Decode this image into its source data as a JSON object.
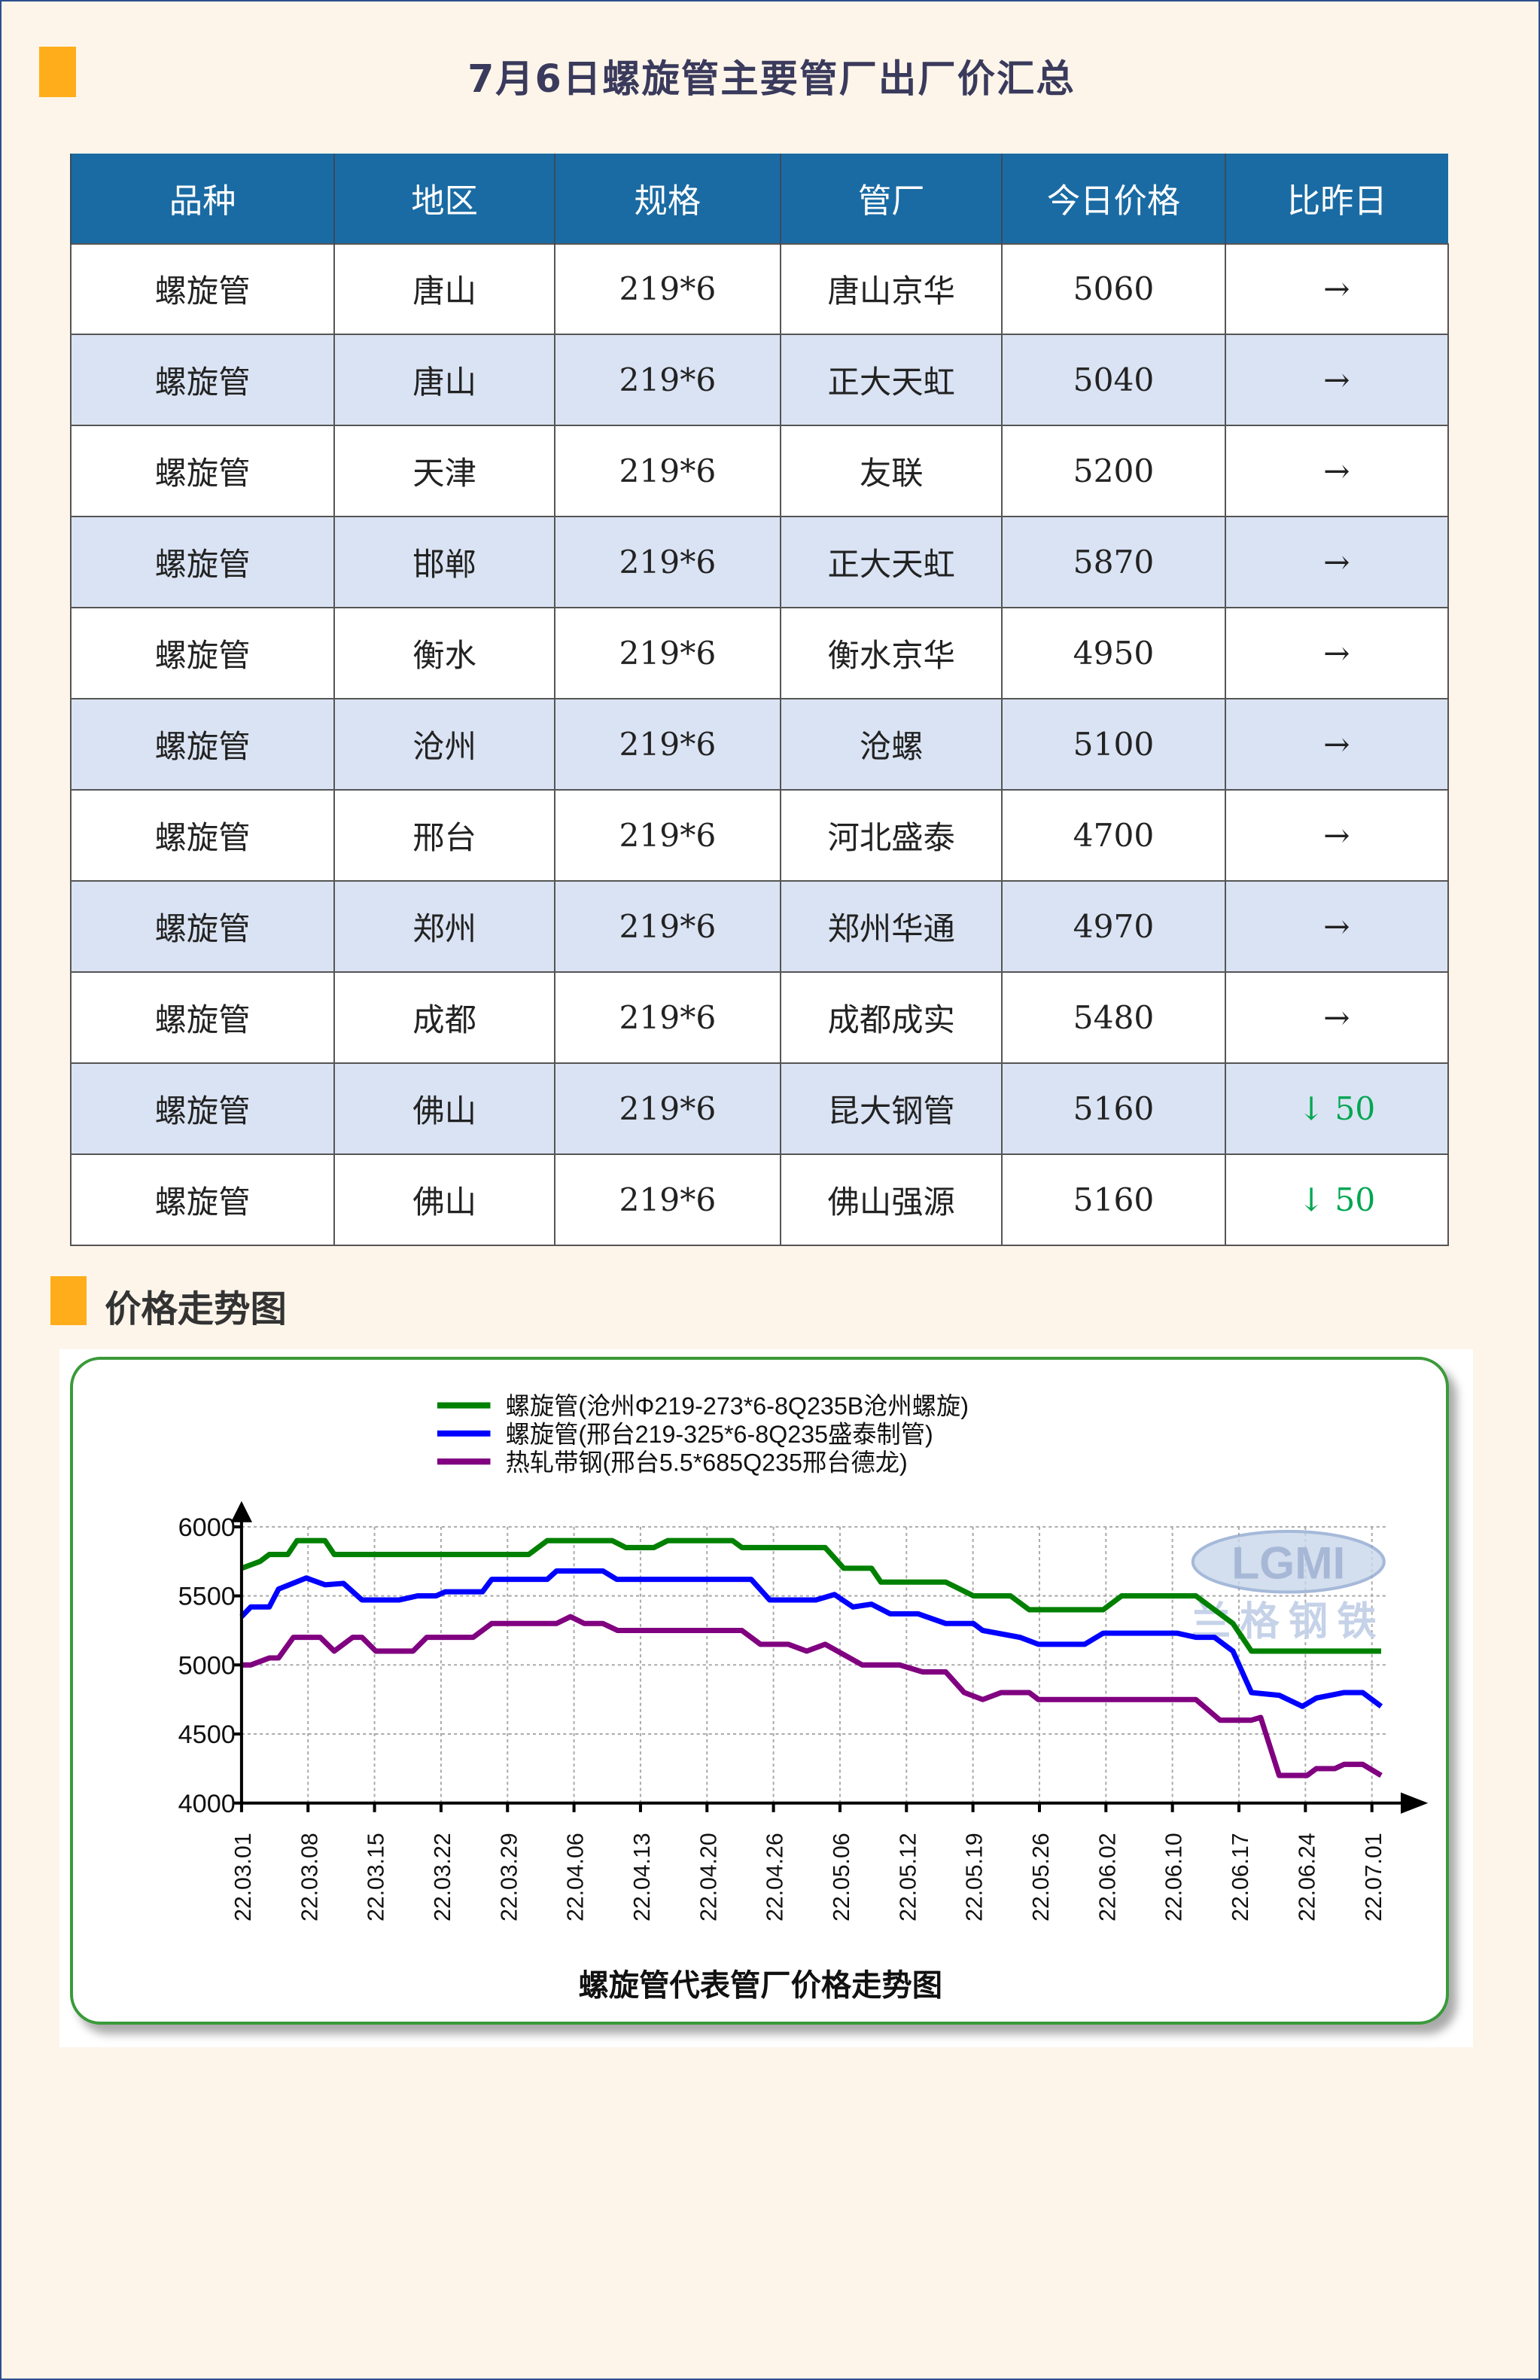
{
  "title": "7月6日螺旋管主要管厂出厂价汇总",
  "table": {
    "headers": [
      "品种",
      "地区",
      "规格",
      "管厂",
      "今日价格",
      "比昨日"
    ],
    "rows": [
      [
        "螺旋管",
        "唐山",
        "219*6",
        "唐山京华",
        "5060",
        "→"
      ],
      [
        "螺旋管",
        "唐山",
        "219*6",
        "正大天虹",
        "5040",
        "→"
      ],
      [
        "螺旋管",
        "天津",
        "219*6",
        "友联",
        "5200",
        "→"
      ],
      [
        "螺旋管",
        "邯郸",
        "219*6",
        "正大天虹",
        "5870",
        "→"
      ],
      [
        "螺旋管",
        "衡水",
        "219*6",
        "衡水京华",
        "4950",
        "→"
      ],
      [
        "螺旋管",
        "沧州",
        "219*6",
        "沧螺",
        "5100",
        "→"
      ],
      [
        "螺旋管",
        "邢台",
        "219*6",
        "河北盛泰",
        "4700",
        "→"
      ],
      [
        "螺旋管",
        "郑州",
        "219*6",
        "郑州华通",
        "4970",
        "→"
      ],
      [
        "螺旋管",
        "成都",
        "219*6",
        "成都成实",
        "5480",
        "→"
      ],
      [
        "螺旋管",
        "佛山",
        "219*6",
        "昆大钢管",
        "5160",
        "↓ 50"
      ],
      [
        "螺旋管",
        "佛山",
        "219*6",
        "佛山强源",
        "5160",
        "↓ 50"
      ]
    ]
  },
  "section_title": "价格走势图",
  "watermark": {
    "logo": "LGMI",
    "text": "兰格钢铁"
  },
  "chart_data": {
    "type": "line",
    "title": "螺旋管代表管厂价格走势图",
    "ylim": [
      4000,
      6000
    ],
    "yticks": [
      4000,
      4500,
      5000,
      5500,
      6000
    ],
    "xtick_labels": [
      "22.03.01",
      "22.03.08",
      "22.03.15",
      "22.03.22",
      "22.03.29",
      "22.04.06",
      "22.04.13",
      "22.04.20",
      "22.04.26",
      "22.05.06",
      "22.05.12",
      "22.05.19",
      "22.05.26",
      "22.06.02",
      "22.06.10",
      "22.06.17",
      "22.06.24",
      "22.07.01"
    ],
    "x_unit": "days since 22.03.01",
    "grid": true,
    "legend_position": "top-center",
    "series": [
      {
        "name": "螺旋管(沧州Φ219-273*6-8Q235B沧州螺旋)",
        "color": "#008000",
        "points": [
          [
            0,
            5700
          ],
          [
            2,
            5750
          ],
          [
            3,
            5800
          ],
          [
            5,
            5800
          ],
          [
            6,
            5900
          ],
          [
            9,
            5900
          ],
          [
            10,
            5800
          ],
          [
            31,
            5800
          ],
          [
            33,
            5900
          ],
          [
            40,
            5900
          ],
          [
            41.5,
            5850
          ],
          [
            44.5,
            5850
          ],
          [
            46,
            5900
          ],
          [
            53,
            5900
          ],
          [
            54,
            5850
          ],
          [
            63,
            5850
          ],
          [
            65,
            5700
          ],
          [
            68,
            5700
          ],
          [
            69,
            5600
          ],
          [
            76,
            5600
          ],
          [
            79,
            5500
          ],
          [
            83,
            5500
          ],
          [
            85,
            5400
          ],
          [
            93,
            5400
          ],
          [
            95,
            5500
          ],
          [
            103,
            5500
          ],
          [
            105,
            5400
          ],
          [
            107,
            5300
          ],
          [
            109,
            5100
          ],
          [
            123,
            5100
          ]
        ]
      },
      {
        "name": "螺旋管(邢台219-325*6-8Q235盛泰制管)",
        "color": "#0000ff",
        "points": [
          [
            0,
            5350
          ],
          [
            1,
            5420
          ],
          [
            3,
            5420
          ],
          [
            4,
            5550
          ],
          [
            7,
            5630
          ],
          [
            9,
            5580
          ],
          [
            11,
            5590
          ],
          [
            13,
            5470
          ],
          [
            17,
            5470
          ],
          [
            19,
            5500
          ],
          [
            21,
            5500
          ],
          [
            22,
            5530
          ],
          [
            26,
            5530
          ],
          [
            27,
            5620
          ],
          [
            33,
            5620
          ],
          [
            34,
            5680
          ],
          [
            39,
            5680
          ],
          [
            40.5,
            5620
          ],
          [
            55,
            5620
          ],
          [
            57,
            5470
          ],
          [
            62,
            5470
          ],
          [
            64,
            5510
          ],
          [
            66,
            5420
          ],
          [
            68,
            5440
          ],
          [
            70,
            5370
          ],
          [
            73,
            5370
          ],
          [
            76,
            5300
          ],
          [
            79,
            5300
          ],
          [
            80,
            5250
          ],
          [
            84,
            5200
          ],
          [
            86,
            5150
          ],
          [
            91,
            5150
          ],
          [
            93,
            5230
          ],
          [
            101,
            5230
          ],
          [
            103,
            5200
          ],
          [
            105,
            5200
          ],
          [
            107,
            5100
          ],
          [
            109,
            4800
          ],
          [
            112,
            4780
          ],
          [
            114.5,
            4700
          ],
          [
            116,
            4760
          ],
          [
            119,
            4800
          ],
          [
            121,
            4800
          ],
          [
            123,
            4700
          ]
        ]
      },
      {
        "name": "热轧带钢(邢台5.5*685Q235邢台德龙)",
        "color": "#800080",
        "points": [
          [
            0,
            5000
          ],
          [
            1,
            5000
          ],
          [
            3,
            5050
          ],
          [
            4,
            5050
          ],
          [
            5.6,
            5200
          ],
          [
            8.5,
            5200
          ],
          [
            10,
            5100
          ],
          [
            12,
            5200
          ],
          [
            13,
            5200
          ],
          [
            14.5,
            5100
          ],
          [
            18.5,
            5100
          ],
          [
            20,
            5200
          ],
          [
            25,
            5200
          ],
          [
            27,
            5300
          ],
          [
            34,
            5300
          ],
          [
            35.5,
            5350
          ],
          [
            37,
            5300
          ],
          [
            39,
            5300
          ],
          [
            40.6,
            5250
          ],
          [
            54,
            5250
          ],
          [
            56,
            5150
          ],
          [
            59,
            5150
          ],
          [
            61,
            5100
          ],
          [
            63,
            5150
          ],
          [
            67,
            5000
          ],
          [
            71,
            5000
          ],
          [
            73.5,
            4950
          ],
          [
            76,
            4950
          ],
          [
            78,
            4800
          ],
          [
            80,
            4750
          ],
          [
            82,
            4800
          ],
          [
            85,
            4800
          ],
          [
            86,
            4750
          ],
          [
            103,
            4750
          ],
          [
            105.6,
            4600
          ],
          [
            109,
            4600
          ],
          [
            110,
            4620
          ],
          [
            112,
            4200
          ],
          [
            115,
            4200
          ],
          [
            116,
            4250
          ],
          [
            118,
            4250
          ],
          [
            119,
            4280
          ],
          [
            121,
            4280
          ],
          [
            123,
            4200
          ]
        ]
      }
    ]
  }
}
